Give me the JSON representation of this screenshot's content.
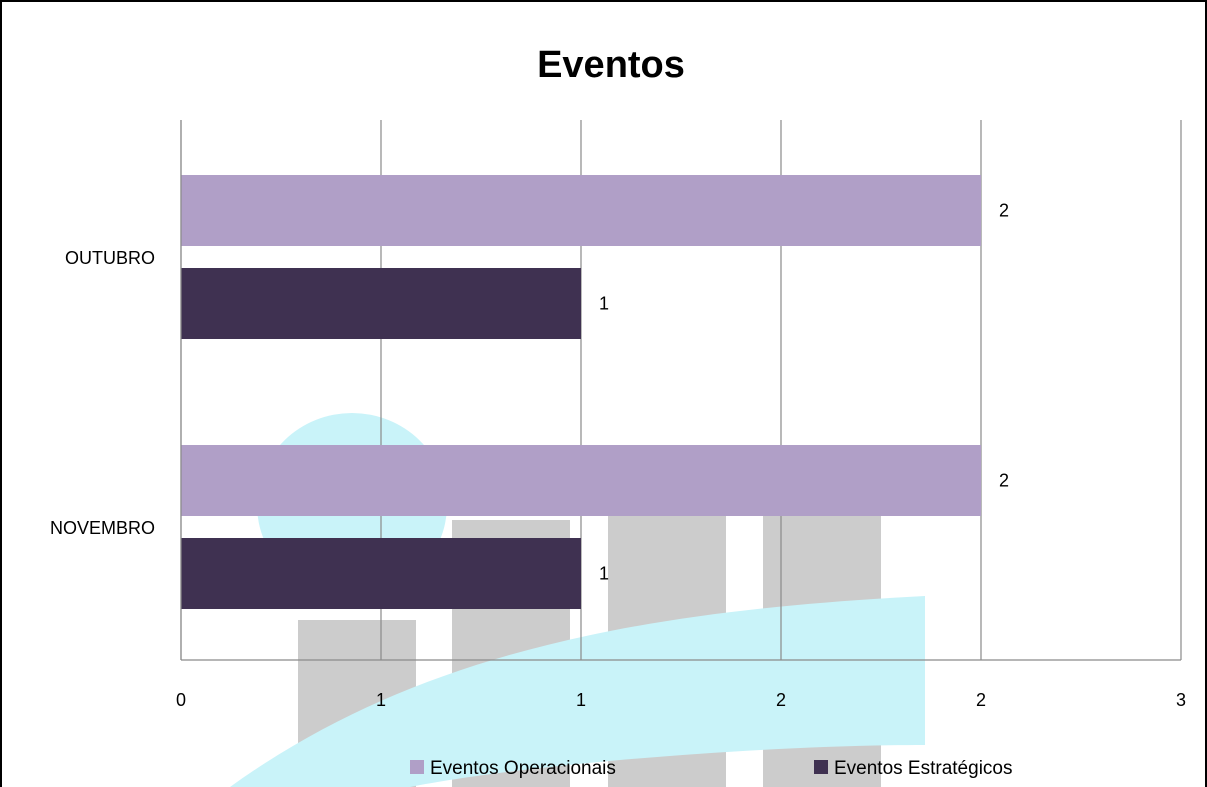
{
  "chart_data": {
    "type": "bar",
    "orientation": "horizontal",
    "title": "Eventos",
    "categories": [
      "OUTUBRO",
      "NOVEMBRO"
    ],
    "series": [
      {
        "name": "Eventos Operacionais",
        "values": [
          2,
          2
        ],
        "color": "#b09fc7"
      },
      {
        "name": "Eventos Estratégicos",
        "values": [
          1,
          1
        ],
        "color": "#3f3151"
      }
    ],
    "data_labels": [
      [
        "2",
        "1"
      ],
      [
        "2",
        "1"
      ]
    ],
    "xlim": [
      0,
      3
    ],
    "x_tick_labels": [
      "0",
      "1",
      "1",
      "2",
      "2",
      "3"
    ],
    "grid": "vertical",
    "legend_position": "bottom"
  },
  "watermark": {
    "colors": {
      "cyan": "#c9f3f9",
      "gray": "#cccccc"
    }
  }
}
